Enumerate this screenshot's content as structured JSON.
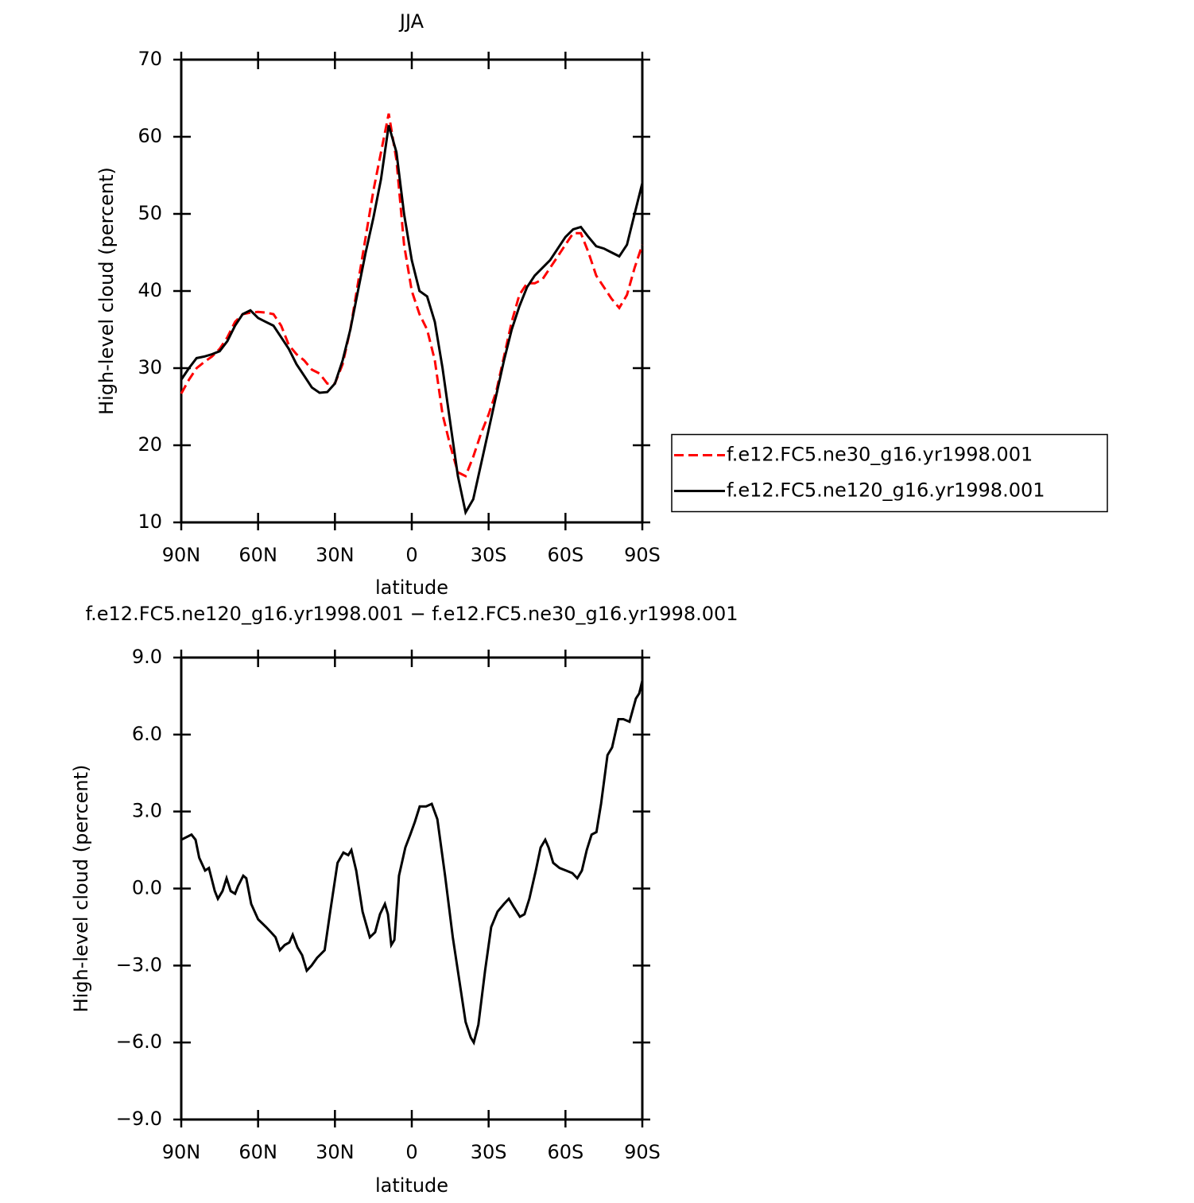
{
  "chart_data": [
    {
      "type": "line",
      "title": "JJA",
      "x_label": "latitude",
      "y_label": "High-level cloud (percent)",
      "x": [
        90,
        87,
        84,
        81,
        78,
        75,
        72,
        69,
        66,
        63,
        60,
        57,
        54,
        51,
        48,
        45,
        42,
        39,
        36,
        33,
        30,
        27,
        24,
        21,
        18,
        15,
        12,
        9,
        6,
        3,
        0,
        -3,
        -6,
        -9,
        -12,
        -15,
        -18,
        -21,
        -24,
        -27,
        -30,
        -33,
        -36,
        -39,
        -42,
        -45,
        -48,
        -51,
        -54,
        -57,
        -60,
        -63,
        -66,
        -69,
        -72,
        -75,
        -78,
        -81,
        -84,
        -87,
        -90
      ],
      "series": [
        {
          "name": "f.e12.FC5.ne30_g16.yr1998.001",
          "color": "#ff0000",
          "dash": true,
          "values": [
            26.7,
            28.5,
            30,
            30.8,
            31.5,
            32.5,
            34,
            36,
            37,
            37.2,
            37.3,
            37.2,
            37,
            35.5,
            33,
            31.8,
            31,
            29.8,
            29.3,
            28,
            28,
            30.5,
            35,
            41,
            47,
            53,
            58,
            63,
            57,
            46,
            40,
            37,
            35,
            31,
            24,
            20,
            16.5,
            16,
            18.5,
            21.5,
            24,
            27,
            31.5,
            36,
            39.5,
            41,
            41,
            41.5,
            43,
            44.5,
            46,
            47.5,
            47.5,
            45,
            42,
            40.5,
            39,
            37.8,
            39.5,
            43,
            46
          ]
        },
        {
          "name": "f.e12.FC5.ne120_g16.yr1998.001",
          "color": "#000000",
          "dash": false,
          "values": [
            28.5,
            30,
            31.3,
            31.5,
            31.8,
            32.2,
            33.5,
            35.5,
            37,
            37.5,
            36.5,
            36,
            35.5,
            34,
            32.5,
            30.5,
            29,
            27.5,
            26.8,
            26.9,
            28,
            31,
            35,
            40,
            45,
            49.5,
            54.5,
            61.5,
            58,
            50,
            44,
            40,
            39.3,
            36,
            30,
            23,
            16,
            11.3,
            13,
            17.5,
            22,
            26.5,
            31,
            35,
            38,
            40.5,
            42,
            43,
            44,
            45.5,
            47,
            48,
            48.3,
            47,
            45.8,
            45.5,
            45,
            44.5,
            46,
            50,
            54
          ]
        }
      ],
      "xlim": [
        90,
        -90
      ],
      "xticks": [
        {
          "value": 90,
          "label": "90N"
        },
        {
          "value": 60,
          "label": "60N"
        },
        {
          "value": 30,
          "label": "30N"
        },
        0,
        {
          "value": -30,
          "label": "30S"
        },
        {
          "value": -60,
          "label": "60S"
        },
        {
          "value": -90,
          "label": "90S"
        }
      ],
      "ylim": [
        10,
        70
      ],
      "yticks": [
        10,
        20,
        30,
        40,
        50,
        60,
        70
      ],
      "legend": "right"
    },
    {
      "type": "line",
      "title": "f.e12.FC5.ne120_g16.yr1998.001 − f.e12.FC5.ne30_g16.yr1998.001",
      "x_label": "latitude",
      "y_label": "High-level cloud (percent)",
      "x": [
        90,
        86,
        84.4,
        83,
        80.7,
        79.2,
        76.9,
        75.7,
        73.9,
        72.3,
        70.7,
        69,
        67.8,
        65.8,
        64.6,
        62.7,
        60,
        56.9,
        55,
        53.2,
        51.5,
        49.6,
        47.8,
        46.5,
        44.6,
        42.8,
        41,
        39.1,
        37,
        34,
        32,
        29,
        26.7,
        24.8,
        23.6,
        21.7,
        19.2,
        16.4,
        14.3,
        12.4,
        10.5,
        9.3,
        8,
        6.8,
        5,
        2.5,
        0.6,
        -1.2,
        -3.1,
        -5.6,
        -7.8,
        -10,
        -13,
        -16,
        -18.6,
        -21,
        -23,
        -24.2,
        -26,
        -28.6,
        -31,
        -33.5,
        -36,
        -37.9,
        -39.7,
        -42.2,
        -44,
        -45.9,
        -48.4,
        -50.3,
        -52.1,
        -53.4,
        -55.2,
        -57.7,
        -60.2,
        -62.7,
        -64.6,
        -66.4,
        -68.3,
        -70.2,
        -72.1,
        -73.9,
        -76.4,
        -78.2,
        -80.7,
        -82.6,
        -85,
        -87.5,
        -88.8,
        -90
      ],
      "values": [
        1.9,
        2.1,
        1.9,
        1.2,
        0.7,
        0.8,
        -0.1,
        -0.4,
        -0.1,
        0.4,
        -0.1,
        -0.2,
        0.1,
        0.5,
        0.4,
        -0.6,
        -1.2,
        -1.5,
        -1.7,
        -1.9,
        -2.4,
        -2.2,
        -2.1,
        -1.8,
        -2.3,
        -2.6,
        -3.2,
        -3.0,
        -2.7,
        -2.4,
        -1.0,
        1.0,
        1.4,
        1.3,
        1.5,
        0.7,
        -0.9,
        -1.9,
        -1.7,
        -1.0,
        -0.6,
        -1.0,
        -2.2,
        -2.0,
        0.5,
        1.6,
        2.1,
        2.6,
        3.2,
        3.2,
        3.3,
        2.7,
        0.5,
        -1.9,
        -3.6,
        -5.2,
        -5.8,
        -6.0,
        -5.3,
        -3.2,
        -1.5,
        -0.9,
        -0.6,
        -0.4,
        -0.7,
        -1.1,
        -1.0,
        -0.4,
        0.7,
        1.6,
        1.9,
        1.6,
        1.0,
        0.8,
        0.7,
        0.6,
        0.4,
        0.7,
        1.5,
        2.1,
        2.2,
        3.3,
        5.2,
        5.5,
        6.6,
        6.6,
        6.5,
        7.4,
        7.6,
        8.1
      ],
      "color": "#000000",
      "xlim": [
        90,
        -90
      ],
      "xticks": [
        {
          "value": 90,
          "label": "90N"
        },
        {
          "value": 60,
          "label": "60N"
        },
        {
          "value": 30,
          "label": "30N"
        },
        0,
        {
          "value": -30,
          "label": "30S"
        },
        {
          "value": -60,
          "label": "60S"
        },
        {
          "value": -90,
          "label": "90S"
        }
      ],
      "ylim": [
        -9,
        9
      ],
      "yticks": [
        {
          "value": -9,
          "label": "−9.0"
        },
        {
          "value": -6,
          "label": "−6.0"
        },
        {
          "value": -3,
          "label": "−3.0"
        },
        {
          "value": 0,
          "label": "0.0"
        },
        {
          "value": 3,
          "label": "3.0"
        },
        {
          "value": 6,
          "label": "6.0"
        },
        {
          "value": 9,
          "label": "9.0"
        }
      ]
    }
  ]
}
